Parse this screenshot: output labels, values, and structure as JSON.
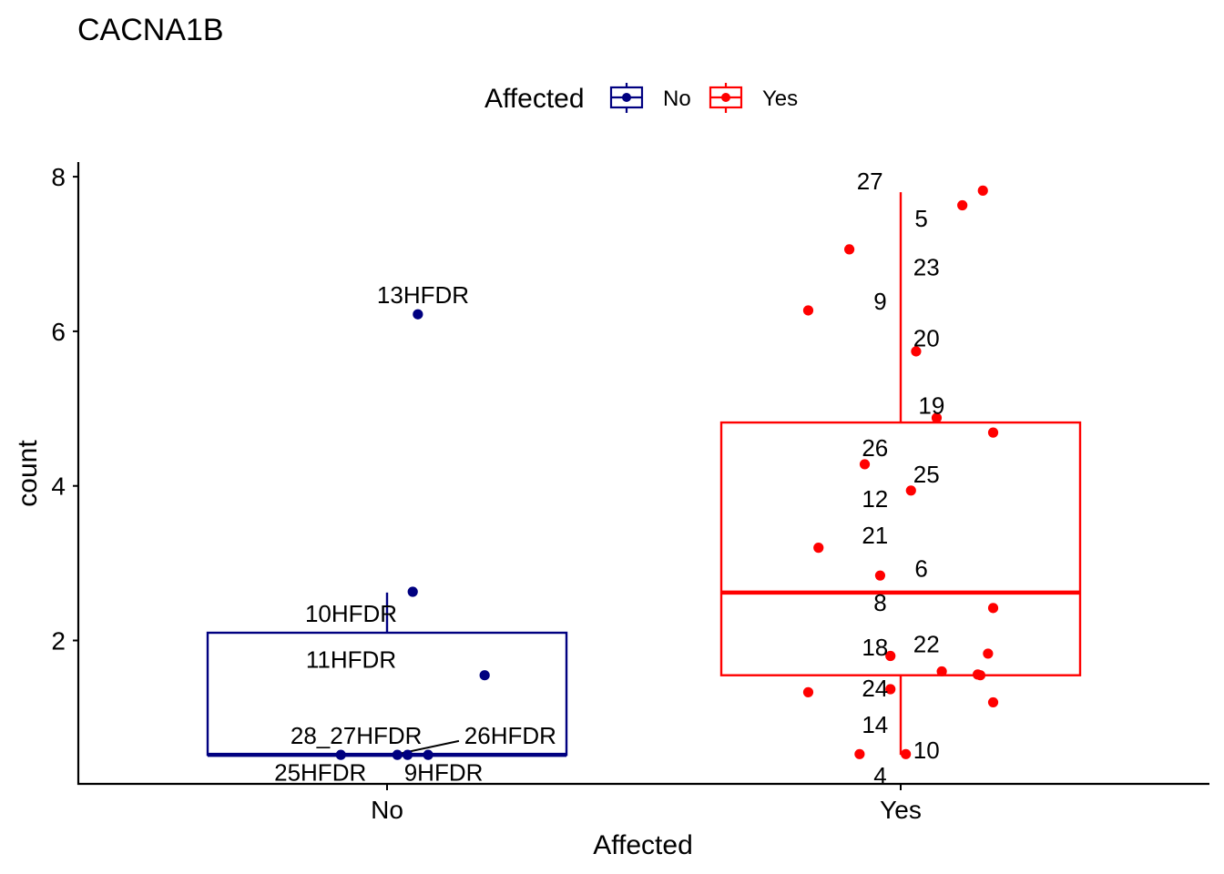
{
  "title": "CACNA1B",
  "colors": {
    "No": "#000080",
    "Yes": "#FF0000",
    "axis": "#000000"
  },
  "chart_data": {
    "type": "box",
    "title": "CACNA1B",
    "xlabel": "Affected",
    "ylabel": "count",
    "categories": [
      "No",
      "Yes"
    ],
    "ylim": [
      0,
      8
    ],
    "yticks": [
      2,
      4,
      6,
      8
    ],
    "grid": false,
    "legend": {
      "title": "Affected",
      "placement": "top",
      "entries": [
        "No",
        "Yes"
      ]
    },
    "boxes": [
      {
        "category": "No",
        "q1": 0.52,
        "median": 0.52,
        "q3": 2.1,
        "whisker_low": 0.52,
        "whisker_high": 2.62
      },
      {
        "category": "Yes",
        "q1": 1.55,
        "median": 2.62,
        "q3": 4.82,
        "whisker_low": 0.52,
        "whisker_high": 7.8
      }
    ],
    "points": {
      "No": [
        {
          "x": 0.06,
          "y": 6.22
        },
        {
          "x": 0.05,
          "y": 2.63
        },
        {
          "x": 0.19,
          "y": 1.55
        },
        {
          "x": -0.09,
          "y": 0.52
        },
        {
          "x": 0.02,
          "y": 0.52
        },
        {
          "x": 0.04,
          "y": 0.52
        },
        {
          "x": 0.08,
          "y": 0.52
        }
      ],
      "Yes": [
        {
          "x": 0.16,
          "y": 7.82
        },
        {
          "x": 0.12,
          "y": 7.63
        },
        {
          "x": -0.1,
          "y": 7.06
        },
        {
          "x": -0.18,
          "y": 6.27
        },
        {
          "x": 0.03,
          "y": 5.74
        },
        {
          "x": 0.07,
          "y": 4.88
        },
        {
          "x": 0.18,
          "y": 4.69
        },
        {
          "x": -0.07,
          "y": 4.28
        },
        {
          "x": 0.02,
          "y": 3.94
        },
        {
          "x": -0.16,
          "y": 3.2
        },
        {
          "x": -0.04,
          "y": 2.84
        },
        {
          "x": 0.18,
          "y": 2.42
        },
        {
          "x": 0.17,
          "y": 1.83
        },
        {
          "x": -0.02,
          "y": 1.8
        },
        {
          "x": 0.08,
          "y": 1.6
        },
        {
          "x": 0.15,
          "y": 1.56
        },
        {
          "x": 0.155,
          "y": 1.55
        },
        {
          "x": -0.02,
          "y": 1.37
        },
        {
          "x": -0.18,
          "y": 1.33
        },
        {
          "x": 0.18,
          "y": 1.2
        },
        {
          "x": -0.08,
          "y": 0.53
        },
        {
          "x": 0.01,
          "y": 0.53
        }
      ]
    },
    "point_labels": {
      "No": [
        {
          "text": "13HFDR",
          "x": 0.07,
          "y": 6.47
        },
        {
          "text": "10HFDR",
          "x": -0.07,
          "y": 2.35
        },
        {
          "text": "11HFDR",
          "x": -0.07,
          "y": 1.75
        },
        {
          "text": "28_27HFDR",
          "x": -0.06,
          "y": 0.77
        },
        {
          "text": "26HFDR",
          "x": 0.24,
          "y": 0.77
        },
        {
          "text": "25HFDR",
          "x": -0.13,
          "y": 0.29
        },
        {
          "text": "9HFDR",
          "x": 0.11,
          "y": 0.29
        }
      ],
      "Yes": [
        {
          "text": "27",
          "x": -0.06,
          "y": 7.94
        },
        {
          "text": "5",
          "x": 0.04,
          "y": 7.46
        },
        {
          "text": "23",
          "x": 0.05,
          "y": 6.83
        },
        {
          "text": "9",
          "x": -0.04,
          "y": 6.39
        },
        {
          "text": "20",
          "x": 0.05,
          "y": 5.91
        },
        {
          "text": "19",
          "x": 0.06,
          "y": 5.04
        },
        {
          "text": "26",
          "x": -0.05,
          "y": 4.49
        },
        {
          "text": "25",
          "x": 0.05,
          "y": 4.15
        },
        {
          "text": "12",
          "x": -0.05,
          "y": 3.83
        },
        {
          "text": "21",
          "x": -0.05,
          "y": 3.36
        },
        {
          "text": "6",
          "x": 0.04,
          "y": 2.93
        },
        {
          "text": "8",
          "x": -0.04,
          "y": 2.49
        },
        {
          "text": "18",
          "x": -0.05,
          "y": 1.91
        },
        {
          "text": "22",
          "x": 0.05,
          "y": 1.95
        },
        {
          "text": "24",
          "x": -0.05,
          "y": 1.38
        },
        {
          "text": "14",
          "x": -0.05,
          "y": 0.91
        },
        {
          "text": "10",
          "x": 0.05,
          "y": 0.58
        },
        {
          "text": "4",
          "x": -0.04,
          "y": 0.25
        }
      ]
    },
    "connectors": [
      {
        "from": {
          "x": 0.14,
          "y": 0.7
        },
        "to": {
          "x": 0.02,
          "y": 0.53
        }
      }
    ]
  }
}
